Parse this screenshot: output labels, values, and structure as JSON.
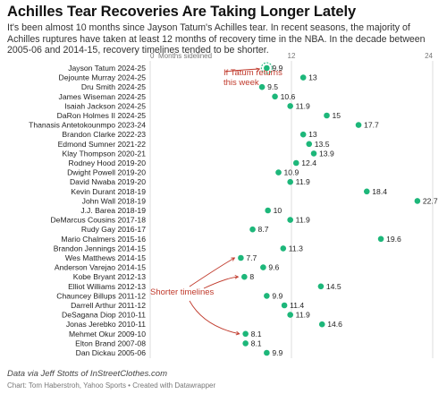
{
  "title": "Achilles Tear Recoveries Are Taking Longer Lately",
  "subtitle": "It's been almost 10 months since Jayson Tatum's Achilles tear. In recent seasons, the majority of Achilles ruptures have taken at least 12 months of recovery time in the NBA. In the decade between 2005-06 and 2014-15, recovery timelines tended to be shorter.",
  "source_note": "Data via Jeff Stotts of InStreetClothes.com",
  "credit": "Chart: Tom Haberstroh, Yahoo Sports • Created with Datawrapper",
  "colors": {
    "dot": "#1db77a",
    "annotation": "#c0392b",
    "grid": "#dedede"
  },
  "chart_data": {
    "type": "scatter",
    "title": "Achilles Tear Recoveries Are Taking Longer Lately",
    "xlabel": "Months sidelined",
    "xlim": [
      0,
      24
    ],
    "xticks": [
      0,
      12,
      24
    ],
    "grid": true,
    "categories": [
      "Jayson Tatum 2024-25",
      "Dejounte Murray 2024-25",
      "Dru Smith 2024-25",
      "James Wiseman 2024-25",
      "Isaiah Jackson 2024-25",
      "DaRon Holmes II 2024-25",
      "Thanasis Antetokounmpo 2023-24",
      "Brandon Clarke 2022-23",
      "Edmond Sumner 2021-22",
      "Klay Thompson 2020-21",
      "Rodney Hood 2019-20",
      "Dwight Powell 2019-20",
      "David Nwaba 2019-20",
      "Kevin Durant 2018-19",
      "John Wall 2018-19",
      "J.J. Barea 2018-19",
      "DeMarcus Cousins 2017-18",
      "Rudy Gay 2016-17",
      "Mario Chalmers 2015-16",
      "Brandon Jennings 2014-15",
      "Wes Matthews 2014-15",
      "Anderson Varejao 2014-15",
      "Kobe Bryant 2012-13",
      "Elliot Williams 2012-13",
      "Chauncey Billups 2011-12",
      "Darrell Arthur 2011-12",
      "DeSagana Diop 2010-11",
      "Jonas Jerebko 2010-11",
      "Mehmet Okur 2009-10",
      "Elton Brand 2007-08",
      "Dan Dickau 2005-06"
    ],
    "values": [
      9.9,
      13,
      9.5,
      10.6,
      11.9,
      15,
      17.7,
      13,
      13.5,
      13.9,
      12.4,
      10.9,
      11.9,
      18.4,
      22.7,
      10,
      11.9,
      8.7,
      19.6,
      11.3,
      7.7,
      9.6,
      8,
      14.5,
      9.9,
      11.4,
      11.9,
      14.6,
      8.1,
      8.1,
      9.9
    ],
    "value_labels": [
      "9.9",
      "13",
      "9.5",
      "10.6",
      "11.9",
      "15",
      "17.7",
      "13",
      "13.5",
      "13.9",
      "12.4",
      "10.9",
      "11.9",
      "18.4",
      "22.7",
      "10",
      "11.9",
      "8.7",
      "19.6",
      "11.3",
      "7.7",
      "9.6",
      "8",
      "14.5",
      "9.9",
      "11.4",
      "11.9",
      "14.6",
      "8.1",
      "8.1",
      "9.9"
    ],
    "highlight": "Jayson Tatum 2024-25",
    "annotations": [
      {
        "text": "If Tatum returns this week",
        "target": "Jayson Tatum 2024-25"
      },
      {
        "text": "Shorter timelines",
        "targets": [
          "Wes Matthews 2014-15",
          "Kobe Bryant 2012-13",
          "Mehmet Okur 2009-10"
        ]
      }
    ]
  }
}
